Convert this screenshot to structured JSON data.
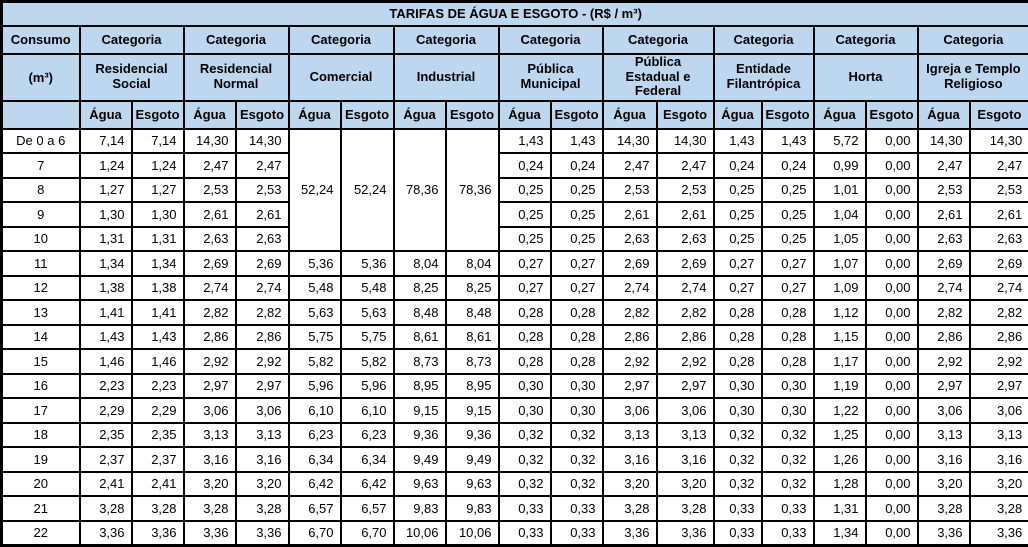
{
  "title": "TARIFAS DE ÁGUA E ESGOTO - (R$ / m³)",
  "colors": {
    "header_bg": "#BDD7EE",
    "border": "#000000",
    "background": "#FFFFFF",
    "text": "#000000"
  },
  "chart_data": {
    "type": "table",
    "consumo_header": "Consumo",
    "consumo_unit": "(m³)",
    "categoria_label": "Categoria",
    "agua_label": "Água",
    "esgoto_label": "Esgoto",
    "groups": [
      "Residencial Social",
      "Residencial Normal",
      "Comercial",
      "Industrial",
      "Pública Municipal",
      "Pública Estadual e Federal",
      "Entidade Filantrópica",
      "Horta",
      "Igreja e Templo Religioso"
    ],
    "merged_block": {
      "row_start": 0,
      "row_span": 5,
      "col_start": 4,
      "values": [
        "52,24",
        "52,24",
        "78,36",
        "78,36"
      ]
    },
    "rows": [
      {
        "consumo": "De 0 a 6",
        "values": [
          "7,14",
          "7,14",
          "14,30",
          "14,30",
          null,
          null,
          null,
          null,
          "1,43",
          "1,43",
          "14,30",
          "14,30",
          "1,43",
          "1,43",
          "5,72",
          "0,00",
          "14,30",
          "14,30"
        ]
      },
      {
        "consumo": "7",
        "values": [
          "1,24",
          "1,24",
          "2,47",
          "2,47",
          null,
          null,
          null,
          null,
          "0,24",
          "0,24",
          "2,47",
          "2,47",
          "0,24",
          "0,24",
          "0,99",
          "0,00",
          "2,47",
          "2,47"
        ]
      },
      {
        "consumo": "8",
        "values": [
          "1,27",
          "1,27",
          "2,53",
          "2,53",
          null,
          null,
          null,
          null,
          "0,25",
          "0,25",
          "2,53",
          "2,53",
          "0,25",
          "0,25",
          "1,01",
          "0,00",
          "2,53",
          "2,53"
        ]
      },
      {
        "consumo": "9",
        "values": [
          "1,30",
          "1,30",
          "2,61",
          "2,61",
          null,
          null,
          null,
          null,
          "0,25",
          "0,25",
          "2,61",
          "2,61",
          "0,25",
          "0,25",
          "1,04",
          "0,00",
          "2,61",
          "2,61"
        ]
      },
      {
        "consumo": "10",
        "values": [
          "1,31",
          "1,31",
          "2,63",
          "2,63",
          null,
          null,
          null,
          null,
          "0,25",
          "0,25",
          "2,63",
          "2,63",
          "0,25",
          "0,25",
          "1,05",
          "0,00",
          "2,63",
          "2,63"
        ]
      },
      {
        "consumo": "11",
        "values": [
          "1,34",
          "1,34",
          "2,69",
          "2,69",
          "5,36",
          "5,36",
          "8,04",
          "8,04",
          "0,27",
          "0,27",
          "2,69",
          "2,69",
          "0,27",
          "0,27",
          "1,07",
          "0,00",
          "2,69",
          "2,69"
        ]
      },
      {
        "consumo": "12",
        "values": [
          "1,38",
          "1,38",
          "2,74",
          "2,74",
          "5,48",
          "5,48",
          "8,25",
          "8,25",
          "0,27",
          "0,27",
          "2,74",
          "2,74",
          "0,27",
          "0,27",
          "1,09",
          "0,00",
          "2,74",
          "2,74"
        ]
      },
      {
        "consumo": "13",
        "values": [
          "1,41",
          "1,41",
          "2,82",
          "2,82",
          "5,63",
          "5,63",
          "8,48",
          "8,48",
          "0,28",
          "0,28",
          "2,82",
          "2,82",
          "0,28",
          "0,28",
          "1,12",
          "0,00",
          "2,82",
          "2,82"
        ]
      },
      {
        "consumo": "14",
        "values": [
          "1,43",
          "1,43",
          "2,86",
          "2,86",
          "5,75",
          "5,75",
          "8,61",
          "8,61",
          "0,28",
          "0,28",
          "2,86",
          "2,86",
          "0,28",
          "0,28",
          "1,15",
          "0,00",
          "2,86",
          "2,86"
        ]
      },
      {
        "consumo": "15",
        "values": [
          "1,46",
          "1,46",
          "2,92",
          "2,92",
          "5,82",
          "5,82",
          "8,73",
          "8,73",
          "0,28",
          "0,28",
          "2,92",
          "2,92",
          "0,28",
          "0,28",
          "1,17",
          "0,00",
          "2,92",
          "2,92"
        ]
      },
      {
        "consumo": "16",
        "values": [
          "2,23",
          "2,23",
          "2,97",
          "2,97",
          "5,96",
          "5,96",
          "8,95",
          "8,95",
          "0,30",
          "0,30",
          "2,97",
          "2,97",
          "0,30",
          "0,30",
          "1,19",
          "0,00",
          "2,97",
          "2,97"
        ]
      },
      {
        "consumo": "17",
        "values": [
          "2,29",
          "2,29",
          "3,06",
          "3,06",
          "6,10",
          "6,10",
          "9,15",
          "9,15",
          "0,30",
          "0,30",
          "3,06",
          "3,06",
          "0,30",
          "0,30",
          "1,22",
          "0,00",
          "3,06",
          "3,06"
        ]
      },
      {
        "consumo": "18",
        "values": [
          "2,35",
          "2,35",
          "3,13",
          "3,13",
          "6,23",
          "6,23",
          "9,36",
          "9,36",
          "0,32",
          "0,32",
          "3,13",
          "3,13",
          "0,32",
          "0,32",
          "1,25",
          "0,00",
          "3,13",
          "3,13"
        ]
      },
      {
        "consumo": "19",
        "values": [
          "2,37",
          "2,37",
          "3,16",
          "3,16",
          "6,34",
          "6,34",
          "9,49",
          "9,49",
          "0,32",
          "0,32",
          "3,16",
          "3,16",
          "0,32",
          "0,32",
          "1,26",
          "0,00",
          "3,16",
          "3,16"
        ]
      },
      {
        "consumo": "20",
        "values": [
          "2,41",
          "2,41",
          "3,20",
          "3,20",
          "6,42",
          "6,42",
          "9,63",
          "9,63",
          "0,32",
          "0,32",
          "3,20",
          "3,20",
          "0,32",
          "0,32",
          "1,28",
          "0,00",
          "3,20",
          "3,20"
        ]
      },
      {
        "consumo": "21",
        "values": [
          "3,28",
          "3,28",
          "3,28",
          "3,28",
          "6,57",
          "6,57",
          "9,83",
          "9,83",
          "0,33",
          "0,33",
          "3,28",
          "3,28",
          "0,33",
          "0,33",
          "1,31",
          "0,00",
          "3,28",
          "3,28"
        ]
      },
      {
        "consumo": "22",
        "values": [
          "3,36",
          "3,36",
          "3,36",
          "3,36",
          "6,70",
          "6,70",
          "10,06",
          "10,06",
          "0,33",
          "0,33",
          "3,36",
          "3,36",
          "0,33",
          "0,33",
          "1,34",
          "0,00",
          "3,36",
          "3,36"
        ]
      }
    ]
  }
}
